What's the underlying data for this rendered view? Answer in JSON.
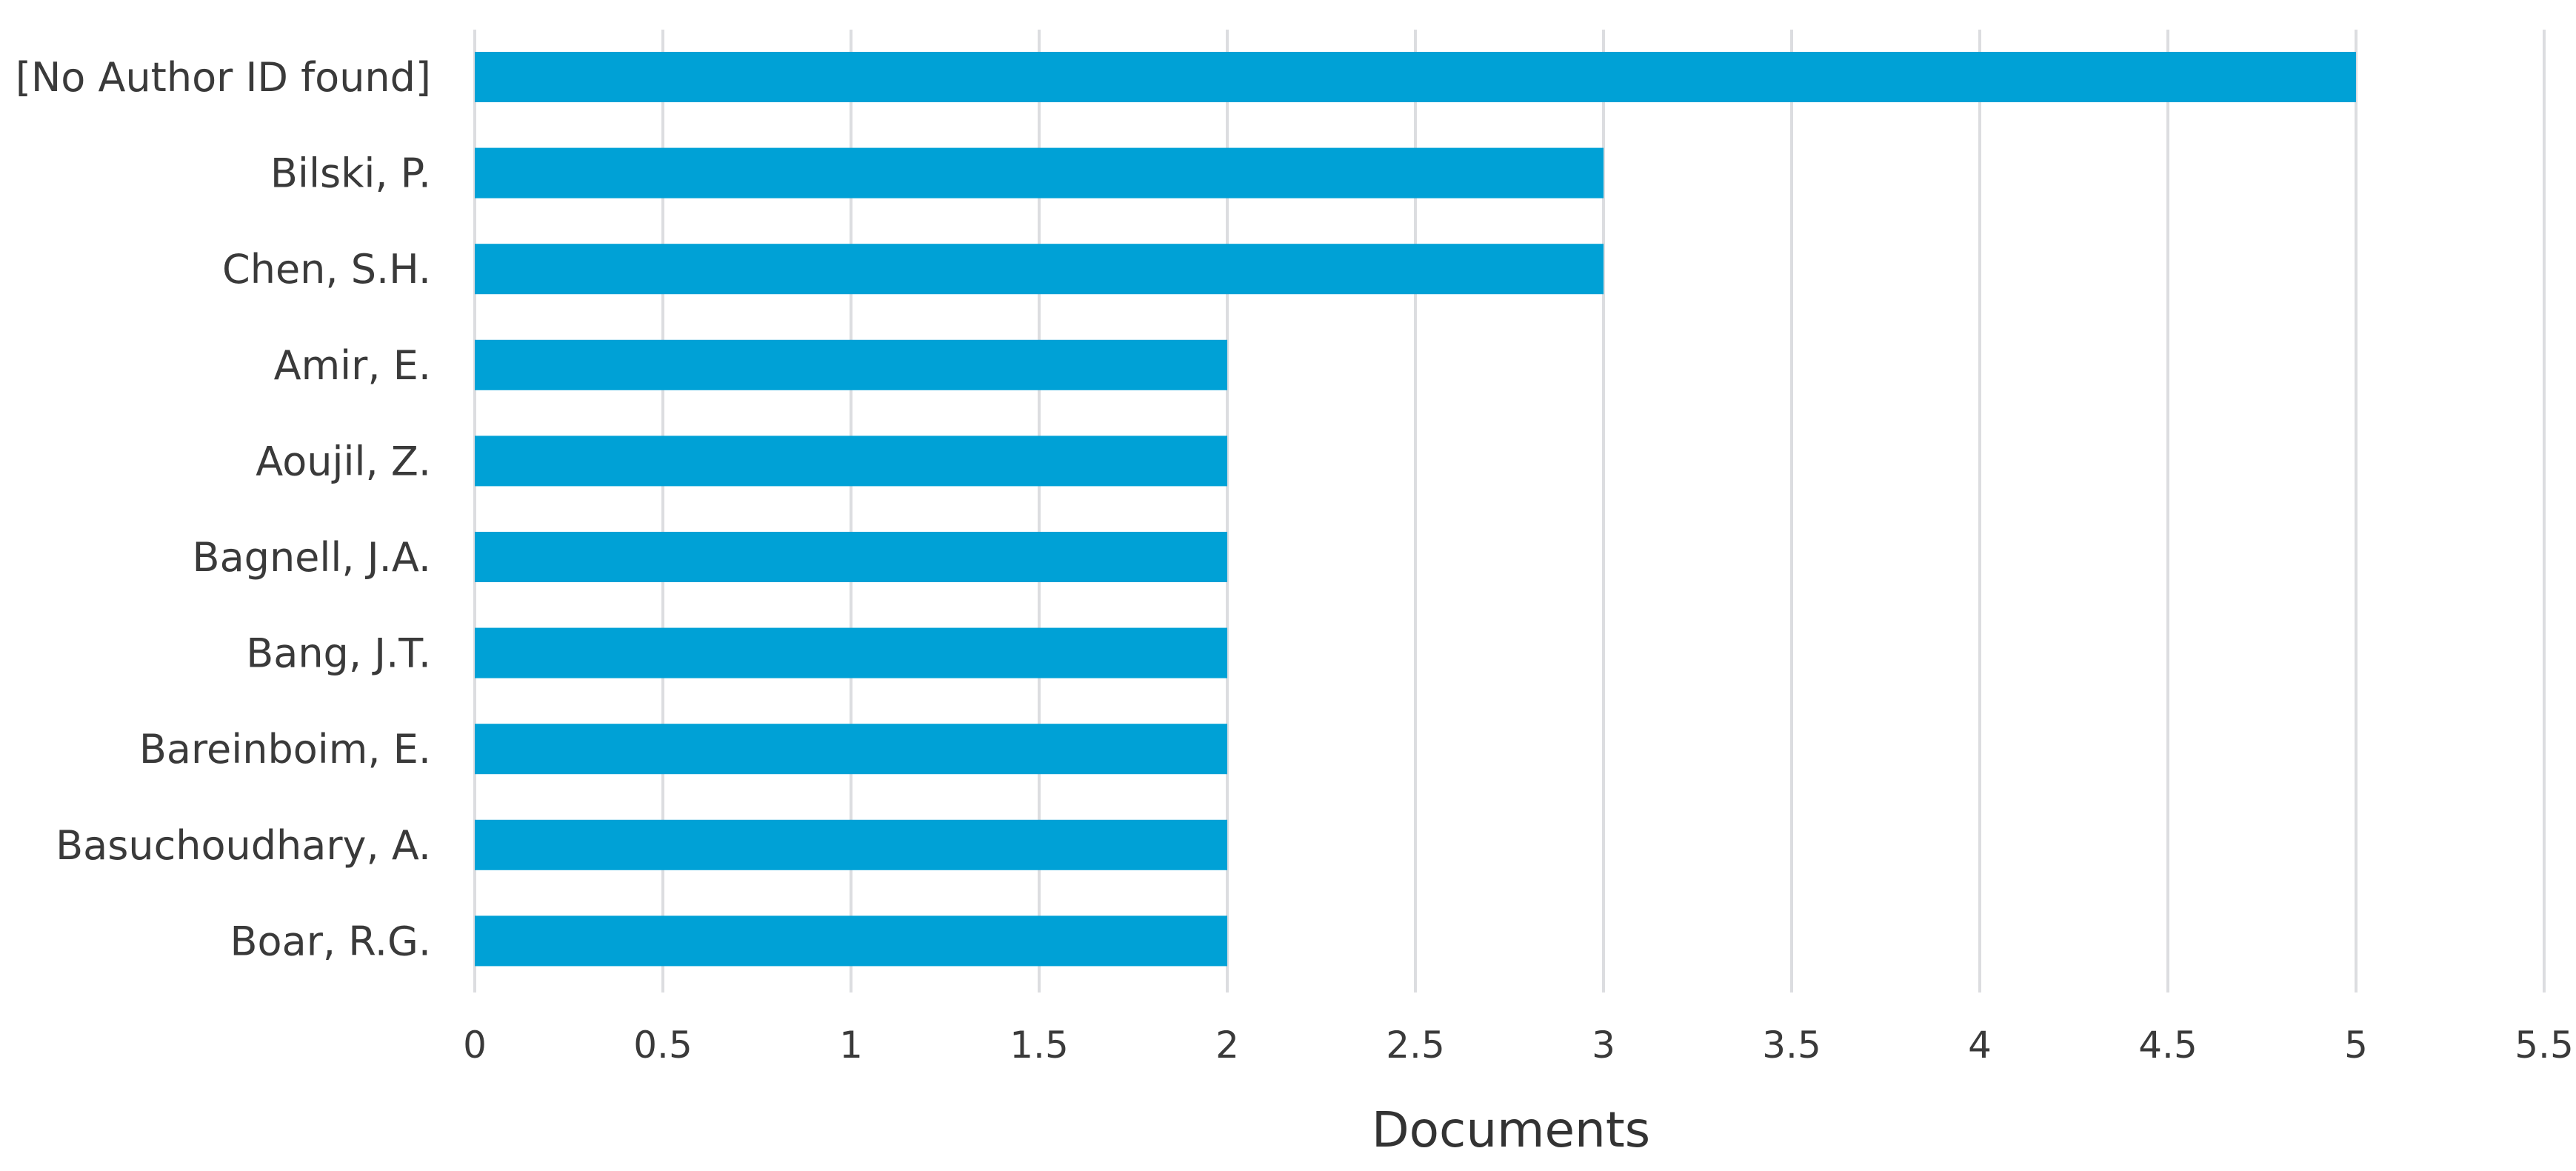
{
  "chart_data": {
    "type": "bar",
    "orientation": "horizontal",
    "categories": [
      "[No Author ID found]",
      "Bilski, P.",
      "Chen, S.H.",
      "Amir, E.",
      "Aoujil, Z.",
      "Bagnell, J.A.",
      "Bang, J.T.",
      "Bareinboim, E.",
      "Basuchoudhary, A.",
      "Boar, R.G."
    ],
    "values": [
      5,
      3,
      3,
      2,
      2,
      2,
      2,
      2,
      2,
      2
    ],
    "xlabel": "Documents",
    "ylabel": "",
    "xlim": [
      0,
      5.5
    ],
    "xticks": [
      0,
      0.5,
      1,
      1.5,
      2,
      2.5,
      3,
      3.5,
      4,
      4.5,
      5,
      5.5
    ],
    "xtick_labels": [
      "0",
      "0.5",
      "1",
      "1.5",
      "2",
      "2.5",
      "3",
      "3.5",
      "4",
      "4.5",
      "5",
      "5.5"
    ],
    "grid": "vertical",
    "legend": "none",
    "bar_color": "#00a1d6"
  }
}
